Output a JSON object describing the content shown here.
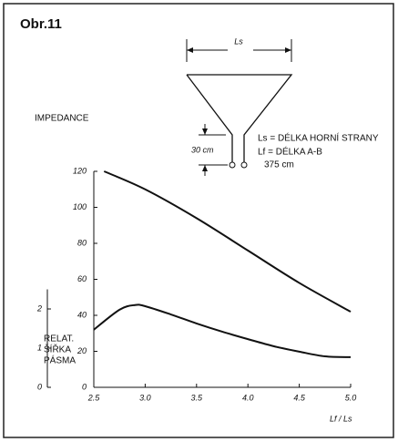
{
  "chart_data": {
    "type": "line",
    "title": "Obr.11",
    "y_label": "IMPEDANCE",
    "y2_label": [
      "RELAT.",
      "ŠÍŘKA",
      "PÁSMA"
    ],
    "x_label": "Lf / Ls",
    "diagram": {
      "top_label": "Ls",
      "gap_label": "30 cm",
      "legend": [
        "Ls = DÉLKA HORNÍ STRANY",
        "Lf = DÉLKA A-B",
        "375 cm"
      ]
    },
    "xlim": [
      2.5,
      5.0
    ],
    "xticks": [
      2.5,
      {
        "value": 3.0,
        "label": "3.0"
      },
      3.5,
      {
        "value": 4.0,
        "label": "4.0"
      },
      4.5,
      {
        "value": 5.0,
        "label": "5.0"
      }
    ],
    "ylim": [
      0,
      120
    ],
    "yticks": [
      0,
      20,
      40,
      60,
      80,
      100,
      120
    ],
    "y2lim": [
      0,
      2.5
    ],
    "y2ticks": [
      0,
      1,
      2
    ],
    "series": [
      {
        "name": "IMPEDANCE",
        "color": "#111111",
        "x": [
          2.6,
          3.0,
          3.5,
          4.0,
          4.5,
          5.0
        ],
        "values": [
          120,
          110,
          94,
          76,
          58,
          42
        ]
      },
      {
        "name": "RELAT. ŠÍŘKA PÁSMA",
        "color": "#111111",
        "axis": "y2",
        "x": [
          2.5,
          2.75,
          2.9,
          3.0,
          3.25,
          3.5,
          3.75,
          4.0,
          4.25,
          4.5,
          4.75,
          5.0
        ],
        "values": [
          1.47,
          1.98,
          2.1,
          2.07,
          1.86,
          1.63,
          1.42,
          1.23,
          1.05,
          0.91,
          0.79,
          0.77
        ]
      }
    ]
  }
}
